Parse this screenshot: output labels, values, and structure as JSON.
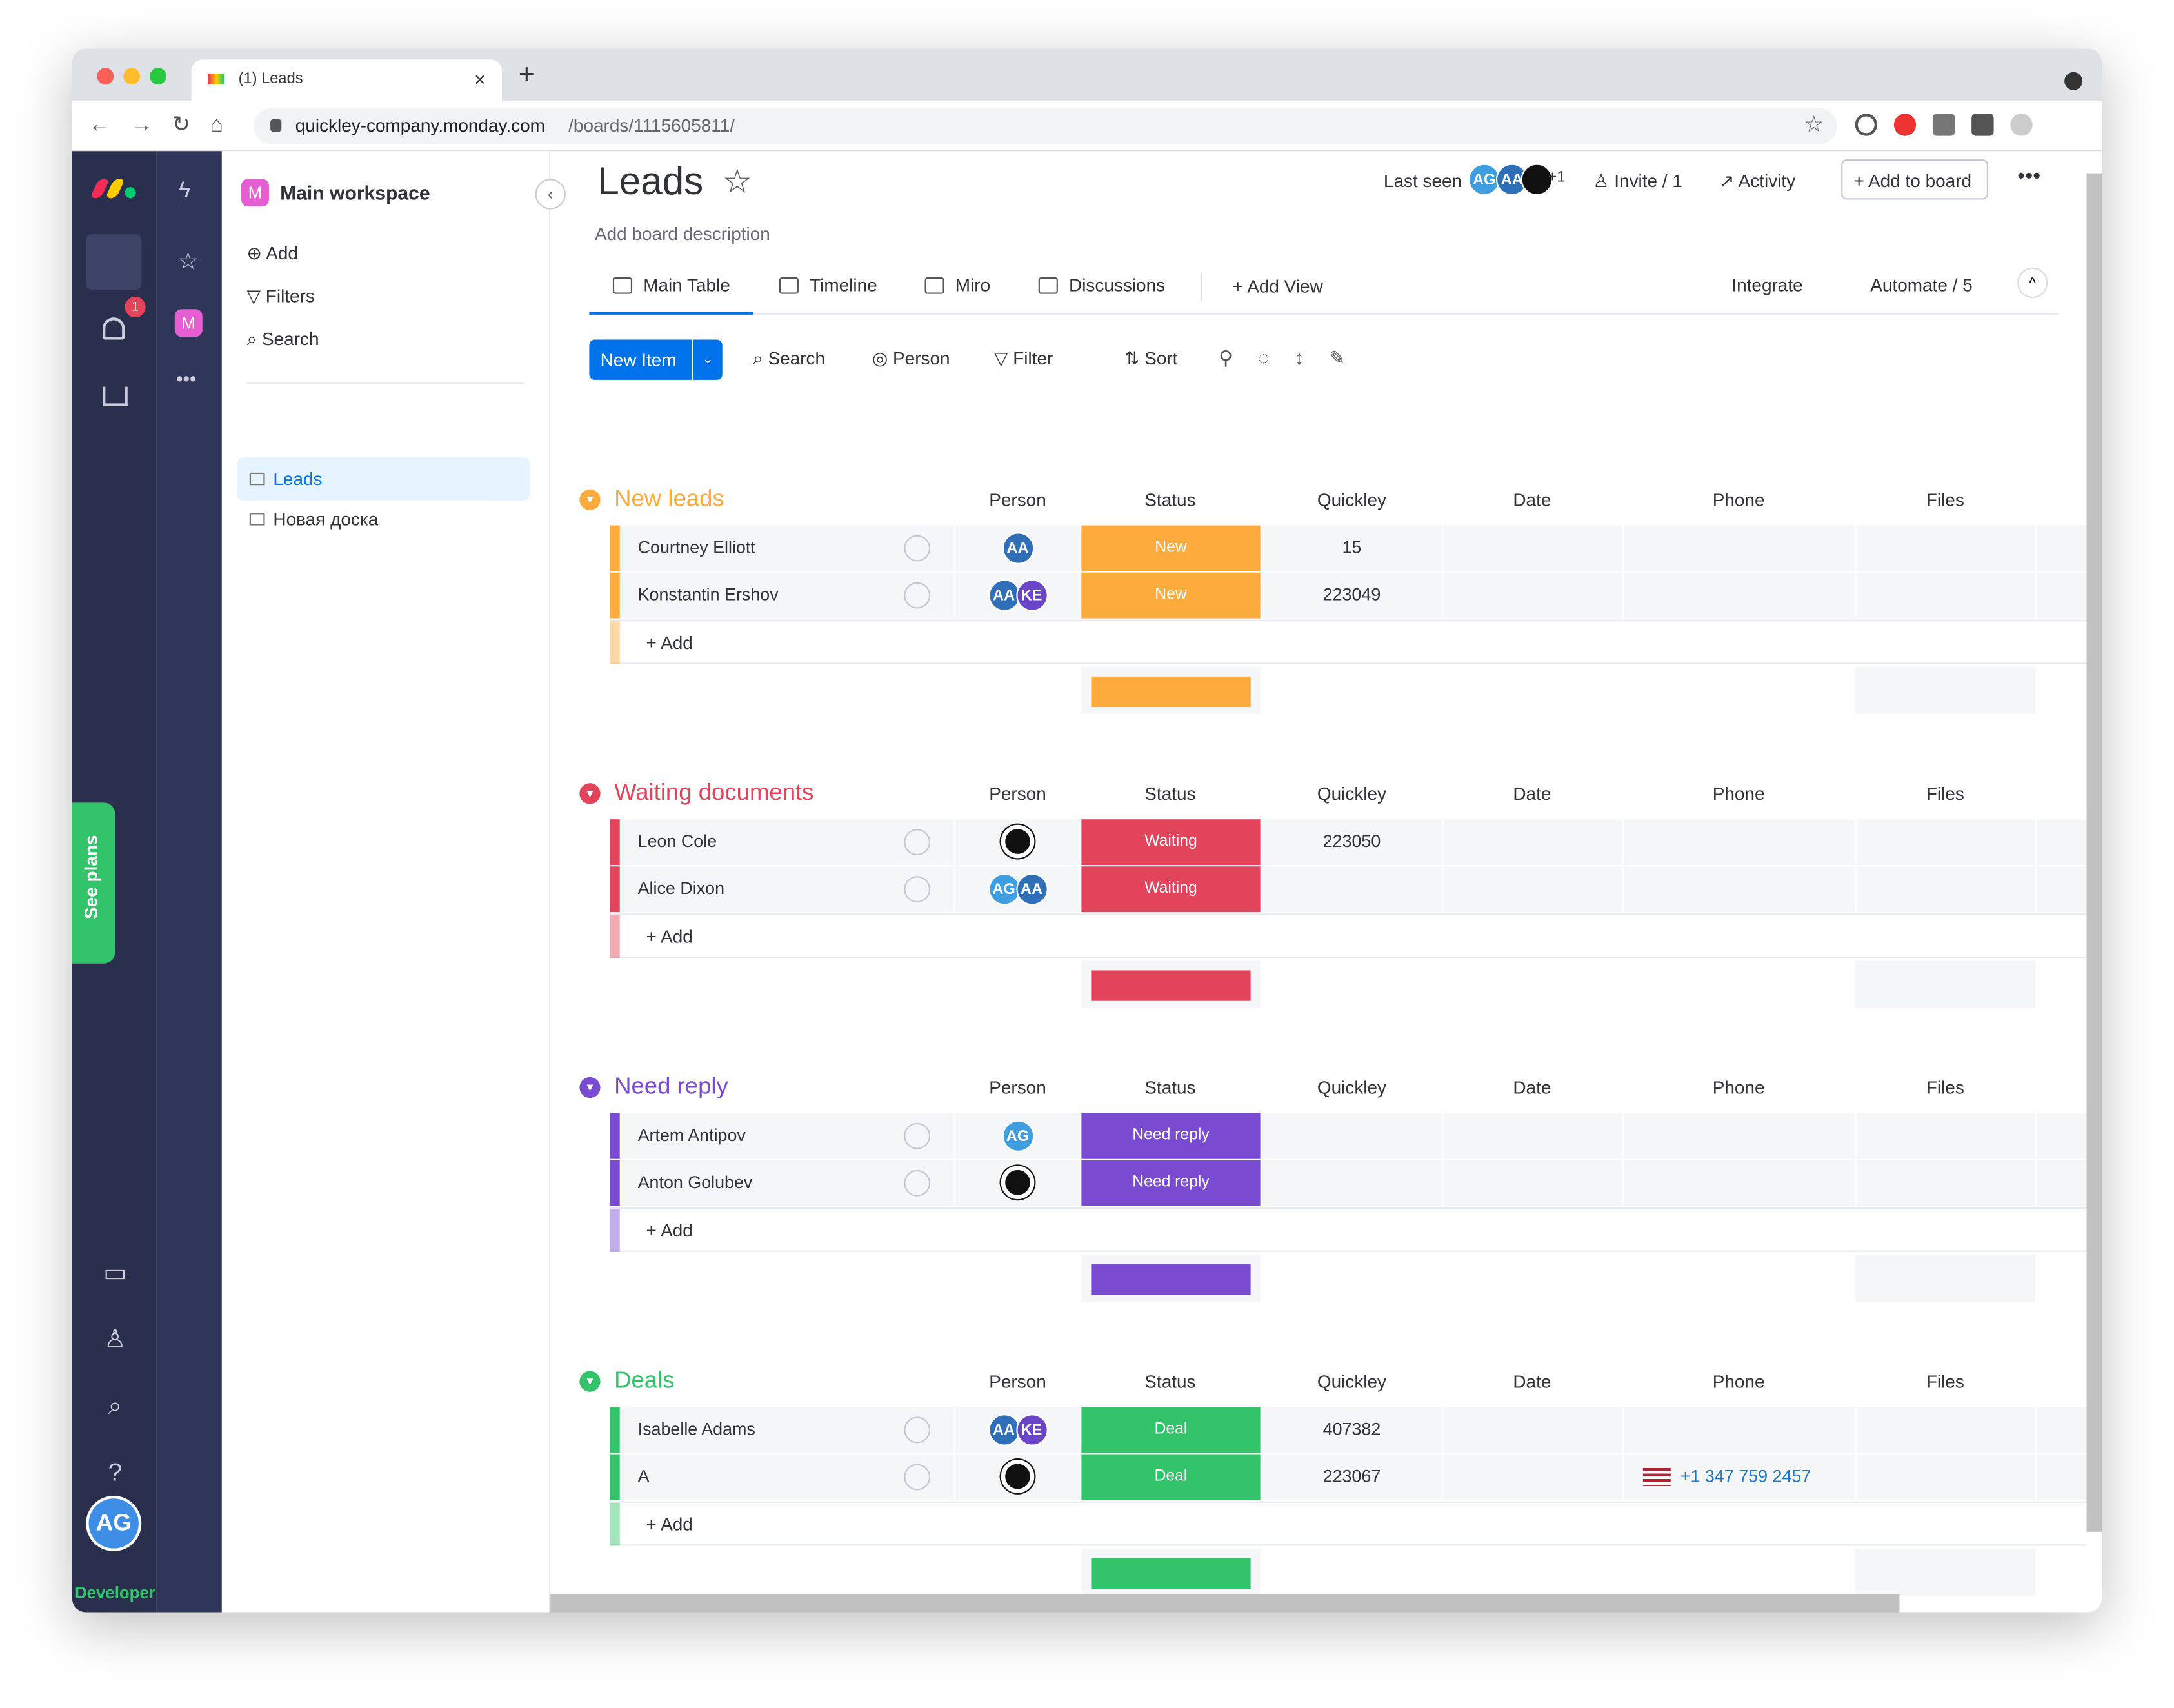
{
  "browser": {
    "tab_title": "(1) Leads",
    "url_host": "quickley-company.monday.com",
    "url_path": "/boards/1115605811/"
  },
  "sidebar": {
    "notifications": "1",
    "see_plans": "See plans",
    "user": "AG",
    "developer": "Developer",
    "workspace": "Main workspace",
    "workspace_initial": "M",
    "actions": [
      "Add",
      "Filters",
      "Search"
    ],
    "boards": [
      "Leads",
      "Новая доска"
    ]
  },
  "header": {
    "title": "Leads",
    "description": "Add board description",
    "last_seen": "Last seen",
    "last_seen_avatars": [
      "AG",
      "AA"
    ],
    "last_seen_more": "+1",
    "invite": "Invite / 1",
    "activity": "Activity",
    "add_to_board": "Add to board"
  },
  "views": {
    "tabs": [
      "Main Table",
      "Timeline",
      "Miro",
      "Discussions"
    ],
    "add_view": "Add View",
    "integrate": "Integrate",
    "automate": "Automate / 5"
  },
  "toolbar": {
    "new_item": "New Item",
    "search": "Search",
    "person": "Person",
    "filter": "Filter",
    "sort": "Sort"
  },
  "table": {
    "columns": [
      "Person",
      "Status",
      "Quickley",
      "Date",
      "Phone",
      "Files"
    ],
    "add_row": "+ Add",
    "groups": [
      {
        "name": "New leads",
        "color": "#fdab3d",
        "rows": [
          {
            "name": "Courtney Elliott",
            "people": [
              "AA"
            ],
            "status": "New",
            "quickley": 15
          },
          {
            "name": "Konstantin Ershov",
            "people": [
              "AA",
              "KE"
            ],
            "status": "New",
            "quickley": 223049
          }
        ]
      },
      {
        "name": "Waiting documents",
        "color": "#e2445c",
        "rows": [
          {
            "name": "Leon Cole",
            "people": [],
            "status": "Waiting",
            "quickley": 223050
          },
          {
            "name": "Alice Dixon",
            "people": [
              "AG",
              "AA"
            ],
            "status": "Waiting"
          }
        ]
      },
      {
        "name": "Need reply",
        "color": "#784bd1",
        "rows": [
          {
            "name": "Artem Antipov",
            "people": [
              "AG"
            ],
            "status": "Need reply"
          },
          {
            "name": "Anton Golubev",
            "people": [],
            "status": "Need reply"
          }
        ]
      },
      {
        "name": "Deals",
        "color": "#33c36a",
        "rows": [
          {
            "name": "Isabelle Adams",
            "people": [
              "AA",
              "KE"
            ],
            "status": "Deal",
            "quickley": 407382
          },
          {
            "name": "A",
            "people": [],
            "status": "Deal",
            "quickley": 223067,
            "phone": "+1 347 759 2457"
          }
        ]
      }
    ]
  }
}
